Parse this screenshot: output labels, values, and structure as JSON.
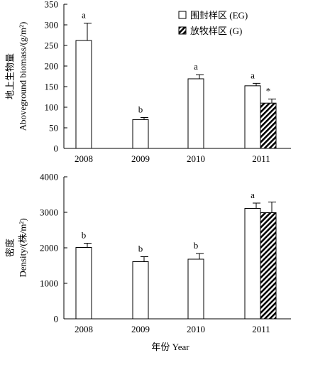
{
  "chart_data": [
    {
      "type": "bar",
      "categories": [
        "2008",
        "2009",
        "2010",
        "2011"
      ],
      "ylim": [
        0,
        350
      ],
      "yticks": [
        0,
        50,
        100,
        150,
        200,
        250,
        300,
        350
      ],
      "ylabel_cn": "地上生物量",
      "ylabel_en": "Aboveground biomass/(g/m²)",
      "legend_position": "top-right",
      "series": [
        {
          "name": "围封样区 (EG)",
          "fill": "#ffffff",
          "pattern": "none",
          "values": [
            262,
            70,
            169,
            152
          ],
          "errors": [
            42,
            5,
            10,
            6
          ],
          "labels": [
            "a",
            "b",
            "a",
            "a"
          ]
        },
        {
          "name": "放牧样区 (G)",
          "fill": "#000000",
          "pattern": "hatch",
          "values": [
            null,
            null,
            null,
            110
          ],
          "errors": [
            null,
            null,
            null,
            10
          ],
          "labels": [
            "",
            "",
            "",
            "*"
          ]
        }
      ]
    },
    {
      "type": "bar",
      "categories": [
        "2008",
        "2009",
        "2010",
        "2011"
      ],
      "ylim": [
        0,
        4000
      ],
      "yticks": [
        0,
        1000,
        2000,
        3000,
        4000
      ],
      "ylabel_cn": "密度",
      "ylabel_en": "Density/(株/m²)",
      "xlabel": "年份 Year",
      "series": [
        {
          "name": "围封样区 (EG)",
          "fill": "#ffffff",
          "pattern": "none",
          "values": [
            2010,
            1610,
            1680,
            3110
          ],
          "errors": [
            120,
            140,
            160,
            150
          ],
          "labels": [
            "b",
            "b",
            "b",
            "a"
          ]
        },
        {
          "name": "放牧样区 (G)",
          "fill": "#000000",
          "pattern": "hatch",
          "values": [
            null,
            null,
            null,
            2990
          ],
          "errors": [
            null,
            null,
            null,
            300
          ],
          "labels": [
            "",
            "",
            "",
            ""
          ]
        }
      ]
    }
  ]
}
